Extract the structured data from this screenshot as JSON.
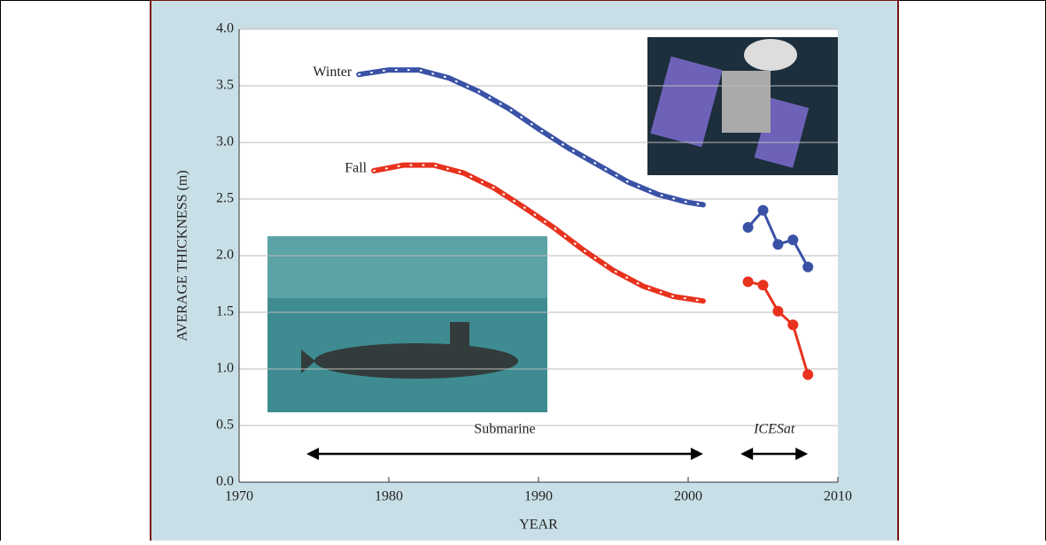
{
  "chart_data": {
    "type": "line",
    "xlabel": "YEAR",
    "ylabel": "AVERAGE THICKNESS (m)",
    "xlim": [
      1970,
      2010
    ],
    "xticks": [
      1970,
      1980,
      1990,
      2000,
      2010
    ],
    "ylim": [
      0,
      4
    ],
    "yticks": [
      {
        "value": 0,
        "label": "0.0"
      },
      0.5,
      {
        "value": 1,
        "label": "1.0"
      },
      1.5,
      {
        "value": 2,
        "label": "2.0"
      },
      2.5,
      {
        "value": 3,
        "label": "3.0"
      },
      3.5,
      {
        "value": 4,
        "label": "4.0"
      }
    ],
    "grid": true,
    "series": [
      {
        "name": "Winter",
        "color": "#3a52a6",
        "x": [
          1978,
          1980,
          1982,
          1984,
          1986,
          1988,
          1990,
          1992,
          1994,
          1996,
          1998,
          2000,
          2001
        ],
        "values": [
          3.6,
          3.64,
          3.64,
          3.57,
          3.45,
          3.3,
          3.12,
          2.95,
          2.8,
          2.65,
          2.54,
          2.47,
          2.45
        ]
      },
      {
        "name": "Fall",
        "color": "#e8321e",
        "x": [
          1979,
          1981,
          1983,
          1985,
          1987,
          1989,
          1991,
          1993,
          1995,
          1997,
          1999,
          2001
        ],
        "values": [
          2.75,
          2.8,
          2.8,
          2.73,
          2.6,
          2.43,
          2.25,
          2.05,
          1.87,
          1.73,
          1.64,
          1.6
        ]
      },
      {
        "color": "#3a52a6",
        "markers": true,
        "x": [
          2004,
          2005,
          2006,
          2007,
          2008
        ],
        "values": [
          2.25,
          2.4,
          2.1,
          2.14,
          1.9
        ]
      },
      {
        "color": "#e8321e",
        "markers": true,
        "x": [
          2004,
          2005,
          2006,
          2007,
          2008
        ],
        "values": [
          1.77,
          1.74,
          1.51,
          1.39,
          0.95
        ]
      }
    ],
    "annotations": [
      {
        "text": "Submarine",
        "x": [
          1974.5,
          2001
        ]
      },
      {
        "text": "ICESat",
        "x": [
          2003.5,
          2008
        ]
      }
    ]
  }
}
